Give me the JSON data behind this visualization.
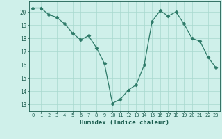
{
  "x": [
    0,
    1,
    2,
    3,
    4,
    5,
    6,
    7,
    8,
    9,
    10,
    11,
    12,
    13,
    14,
    15,
    16,
    17,
    18,
    19,
    20,
    21,
    22,
    23
  ],
  "y": [
    20.3,
    20.3,
    19.8,
    19.6,
    19.1,
    18.4,
    17.9,
    18.2,
    17.3,
    16.1,
    13.1,
    13.4,
    14.1,
    14.5,
    16.0,
    19.3,
    20.1,
    19.7,
    20.0,
    19.1,
    18.0,
    17.8,
    16.6,
    15.8
  ],
  "xlabel": "Humidex (Indice chaleur)",
  "ylim": [
    12.5,
    20.8
  ],
  "xlim": [
    -0.5,
    23.5
  ],
  "yticks": [
    13,
    14,
    15,
    16,
    17,
    18,
    19,
    20
  ],
  "xticks": [
    0,
    1,
    2,
    3,
    4,
    5,
    6,
    7,
    8,
    9,
    10,
    11,
    12,
    13,
    14,
    15,
    16,
    17,
    18,
    19,
    20,
    21,
    22,
    23
  ],
  "line_color": "#2d7a68",
  "marker": "D",
  "marker_size": 2.5,
  "bg_color": "#cff0ea",
  "grid_color": "#a8d8ce",
  "xlabel_color": "#1a5c4e",
  "tick_color": "#1a5c4e"
}
